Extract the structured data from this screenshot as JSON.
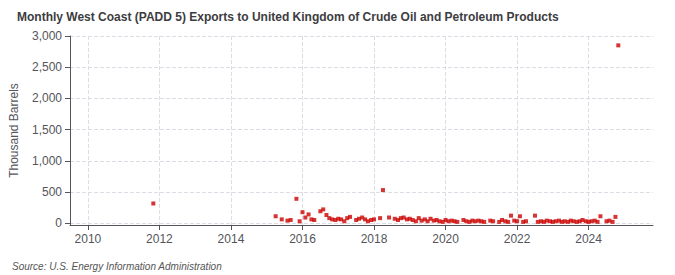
{
  "chart_data": {
    "type": "scatter",
    "title": "Monthly West Coast (PADD 5) Exports to United Kingdom of Crude Oil and Petroleum Products",
    "ylabel": "Thousand Barrels",
    "annotations": [
      "Source: U.S. Energy Information Administration"
    ],
    "color": "#cc0000",
    "marker": "square",
    "grid": true,
    "xlim": [
      2009.5,
      2025.8
    ],
    "ylim": [
      -30,
      3000
    ],
    "xticks": [
      2010,
      2012,
      2014,
      2016,
      2018,
      2020,
      2022,
      2024
    ],
    "yticks": [
      0,
      500,
      {
        "value": 1000,
        "label": "1,000"
      },
      {
        "value": 1500,
        "label": "1,500"
      },
      {
        "value": 2000,
        "label": "2,000"
      },
      {
        "value": 2500,
        "label": "2,500"
      },
      {
        "value": 3000,
        "label": "3,000"
      }
    ],
    "x": [
      2011.83,
      2015.25,
      2015.42,
      2015.58,
      2015.67,
      2015.83,
      2015.92,
      2016.0,
      2016.08,
      2016.17,
      2016.25,
      2016.33,
      2016.5,
      2016.58,
      2016.67,
      2016.75,
      2016.83,
      2016.92,
      2017.0,
      2017.08,
      2017.17,
      2017.25,
      2017.33,
      2017.5,
      2017.58,
      2017.67,
      2017.75,
      2017.83,
      2017.92,
      2018.0,
      2018.17,
      2018.25,
      2018.42,
      2018.58,
      2018.67,
      2018.75,
      2018.83,
      2018.92,
      2019.0,
      2019.08,
      2019.17,
      2019.25,
      2019.33,
      2019.42,
      2019.5,
      2019.58,
      2019.67,
      2019.75,
      2019.83,
      2019.92,
      2020.0,
      2020.08,
      2020.17,
      2020.25,
      2020.33,
      2020.5,
      2020.58,
      2020.67,
      2020.75,
      2020.83,
      2020.92,
      2021.0,
      2021.08,
      2021.25,
      2021.33,
      2021.5,
      2021.58,
      2021.67,
      2021.75,
      2021.83,
      2021.92,
      2022.0,
      2022.08,
      2022.17,
      2022.25,
      2022.5,
      2022.58,
      2022.67,
      2022.75,
      2022.83,
      2022.92,
      2023.0,
      2023.08,
      2023.17,
      2023.25,
      2023.33,
      2023.42,
      2023.5,
      2023.58,
      2023.67,
      2023.75,
      2023.83,
      2023.92,
      2024.0,
      2024.08,
      2024.17,
      2024.25,
      2024.33,
      2024.5,
      2024.58,
      2024.67,
      2024.75,
      2024.83
    ],
    "values": [
      315,
      110,
      60,
      40,
      50,
      390,
      30,
      175,
      90,
      140,
      60,
      50,
      190,
      220,
      130,
      80,
      60,
      50,
      70,
      60,
      30,
      80,
      100,
      50,
      70,
      90,
      60,
      30,
      50,
      60,
      80,
      530,
      90,
      70,
      50,
      80,
      90,
      60,
      70,
      50,
      30,
      80,
      40,
      60,
      30,
      70,
      40,
      50,
      30,
      20,
      50,
      30,
      40,
      30,
      20,
      50,
      30,
      20,
      40,
      30,
      40,
      30,
      20,
      40,
      30,
      20,
      50,
      30,
      20,
      120,
      40,
      30,
      110,
      20,
      30,
      120,
      20,
      30,
      20,
      40,
      30,
      20,
      30,
      40,
      20,
      30,
      20,
      40,
      30,
      20,
      30,
      50,
      30,
      20,
      30,
      40,
      20,
      110,
      30,
      40,
      20,
      100,
      2850
    ]
  }
}
